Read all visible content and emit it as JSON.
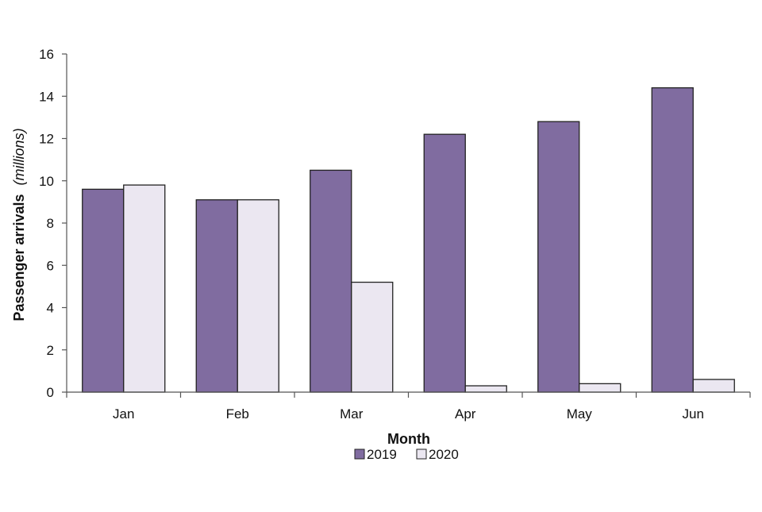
{
  "chart_data": {
    "type": "bar",
    "title": "",
    "xlabel": "Month",
    "ylabel": "Passenger arrivals",
    "ylabel_unit": "(millions)",
    "categories": [
      "Jan",
      "Feb",
      "Mar",
      "Apr",
      "May",
      "Jun"
    ],
    "series": [
      {
        "name": "2019",
        "color": "#806ca0",
        "values": [
          9.6,
          9.1,
          10.5,
          12.2,
          12.8,
          14.4
        ]
      },
      {
        "name": "2020",
        "color": "#ebe7f1",
        "values": [
          9.8,
          9.1,
          5.2,
          0.3,
          0.4,
          0.6
        ]
      }
    ],
    "ylim": [
      0,
      16
    ],
    "yticks": [
      0,
      2,
      4,
      6,
      8,
      10,
      12,
      14,
      16
    ],
    "grid": false,
    "legend_position": "bottom-center"
  }
}
